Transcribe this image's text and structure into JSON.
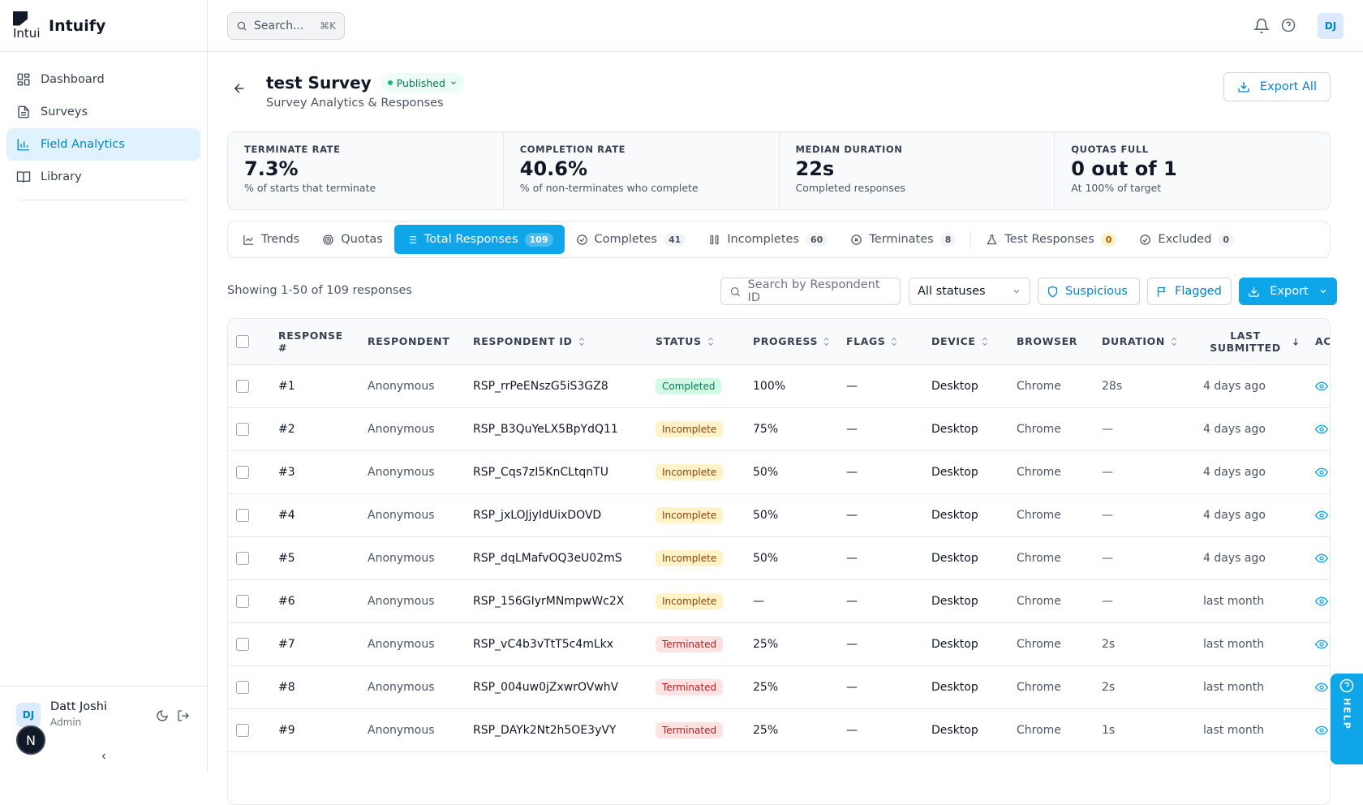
{
  "app": {
    "logo_text": "Intui",
    "brand": "Intuify"
  },
  "sidebar": {
    "items": [
      {
        "label": "Dashboard",
        "icon": "dashboard-icon",
        "active": false
      },
      {
        "label": "Surveys",
        "icon": "document-icon",
        "active": false
      },
      {
        "label": "Field Analytics",
        "icon": "chart-bar-icon",
        "active": true
      },
      {
        "label": "Library",
        "icon": "book-icon",
        "active": false
      }
    ],
    "user": {
      "initials": "DJ",
      "name": "Datt Joshi",
      "role": "Admin",
      "badge_letter": "N"
    }
  },
  "topbar": {
    "search_placeholder": "Search...",
    "search_shortcut": "⌘K",
    "avatar_initials": "DJ"
  },
  "page": {
    "title": "test Survey",
    "status": "Published",
    "subtitle": "Survey Analytics & Responses",
    "export_all_label": "Export All"
  },
  "stats": [
    {
      "label": "TERMINATE RATE",
      "value": "7.3%",
      "sub": "% of starts that terminate"
    },
    {
      "label": "COMPLETION RATE",
      "value": "40.6%",
      "sub": "% of non-terminates who complete"
    },
    {
      "label": "MEDIAN DURATION",
      "value": "22s",
      "sub": "Completed responses"
    },
    {
      "label": "QUOTAS FULL",
      "value": "0 out of 1",
      "sub": "At 100% of target"
    }
  ],
  "tabs": [
    {
      "label": "Trends",
      "count": "",
      "active": false
    },
    {
      "label": "Quotas",
      "count": "",
      "active": false
    },
    {
      "label": "Total Responses",
      "count": "109",
      "active": true
    },
    {
      "label": "Completes",
      "count": "41",
      "active": false
    },
    {
      "label": "Incompletes",
      "count": "60",
      "active": false
    },
    {
      "label": "Terminates",
      "count": "8",
      "active": false
    },
    {
      "label": "Test Responses",
      "count": "0",
      "active": false
    },
    {
      "label": "Excluded",
      "count": "0",
      "active": false
    }
  ],
  "toolbar": {
    "showing": "Showing 1-50 of 109 responses",
    "search_placeholder": "Search by Respondent ID",
    "status_filter": "All statuses",
    "suspicious_label": "Suspicious",
    "flagged_label": "Flagged",
    "export_label": "Export"
  },
  "table": {
    "headers": [
      "RESPONSE #",
      "RESPONDENT",
      "RESPONDENT ID",
      "STATUS",
      "PROGRESS",
      "FLAGS",
      "DEVICE",
      "BROWSER",
      "DURATION",
      "LAST SUBMITTED",
      "AC"
    ],
    "rows": [
      {
        "num": "#1",
        "respondent": "Anonymous",
        "id": "RSP_rrPeENszG5iS3GZ8",
        "status": "Completed",
        "progress": "100%",
        "flags": "—",
        "device": "Desktop",
        "browser": "Chrome",
        "duration": "28s",
        "last": "4 days ago"
      },
      {
        "num": "#2",
        "respondent": "Anonymous",
        "id": "RSP_B3QuYeLX5BpYdQ11",
        "status": "Incomplete",
        "progress": "75%",
        "flags": "—",
        "device": "Desktop",
        "browser": "Chrome",
        "duration": "—",
        "last": "4 days ago"
      },
      {
        "num": "#3",
        "respondent": "Anonymous",
        "id": "RSP_Cqs7zI5KnCLtqnTU",
        "status": "Incomplete",
        "progress": "50%",
        "flags": "—",
        "device": "Desktop",
        "browser": "Chrome",
        "duration": "—",
        "last": "4 days ago"
      },
      {
        "num": "#4",
        "respondent": "Anonymous",
        "id": "RSP_jxLOJjyIdUixDOVD",
        "status": "Incomplete",
        "progress": "50%",
        "flags": "—",
        "device": "Desktop",
        "browser": "Chrome",
        "duration": "—",
        "last": "4 days ago"
      },
      {
        "num": "#5",
        "respondent": "Anonymous",
        "id": "RSP_dqLMafvOQ3eU02mS",
        "status": "Incomplete",
        "progress": "50%",
        "flags": "—",
        "device": "Desktop",
        "browser": "Chrome",
        "duration": "—",
        "last": "4 days ago"
      },
      {
        "num": "#6",
        "respondent": "Anonymous",
        "id": "RSP_156GIyrMNmpwWc2X",
        "status": "Incomplete",
        "progress": "—",
        "flags": "—",
        "device": "Desktop",
        "browser": "Chrome",
        "duration": "—",
        "last": "last month"
      },
      {
        "num": "#7",
        "respondent": "Anonymous",
        "id": "RSP_vC4b3vTtT5c4mLkx",
        "status": "Terminated",
        "progress": "25%",
        "flags": "—",
        "device": "Desktop",
        "browser": "Chrome",
        "duration": "2s",
        "last": "last month"
      },
      {
        "num": "#8",
        "respondent": "Anonymous",
        "id": "RSP_004uw0jZxwrOVwhV",
        "status": "Terminated",
        "progress": "25%",
        "flags": "—",
        "device": "Desktop",
        "browser": "Chrome",
        "duration": "2s",
        "last": "last month"
      },
      {
        "num": "#9",
        "respondent": "Anonymous",
        "id": "RSP_DAYk2Nt2h5OE3yVY",
        "status": "Terminated",
        "progress": "25%",
        "flags": "—",
        "device": "Desktop",
        "browser": "Chrome",
        "duration": "1s",
        "last": "last month"
      }
    ]
  },
  "help_tab": {
    "label": "HELP"
  },
  "colors": {
    "accent": "#0ea5e9",
    "accent_dark": "#0284c7",
    "completed_bg": "#d1fae5",
    "incomplete_bg": "#fef3c7",
    "terminated_bg": "#fee2e2"
  }
}
